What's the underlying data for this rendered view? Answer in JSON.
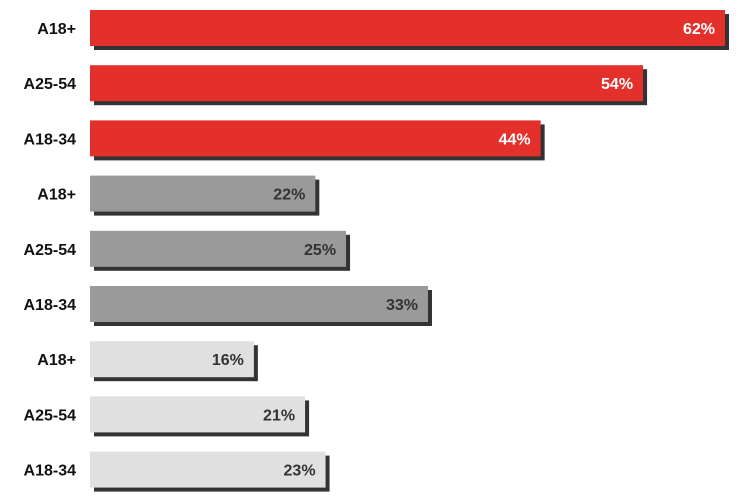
{
  "chart_data": {
    "type": "bar",
    "orientation": "horizontal",
    "xlim": [
      0,
      70
    ],
    "grid": false,
    "legend": "none",
    "categories": [
      "A18+",
      "A25-54",
      "A18-34",
      "A18+",
      "A25-54",
      "A18-34",
      "A18+",
      "A25-54",
      "A18-34"
    ],
    "values": [
      62,
      54,
      44,
      22,
      25,
      33,
      16,
      21,
      23
    ],
    "value_labels": [
      "62%",
      "54%",
      "44%",
      "22%",
      "25%",
      "33%",
      "16%",
      "21%",
      "23%"
    ],
    "bar_colors": [
      "#e3302a",
      "#e3302a",
      "#e3302a",
      "#9a9a9a",
      "#9a9a9a",
      "#9a9a9a",
      "#e0e0e0",
      "#e0e0e0",
      "#e0e0e0"
    ],
    "label_colors": [
      "#ffffff",
      "#ffffff",
      "#ffffff",
      "#333333",
      "#333333",
      "#333333",
      "#333333",
      "#333333",
      "#333333"
    ],
    "shadow_color": "#333333"
  }
}
